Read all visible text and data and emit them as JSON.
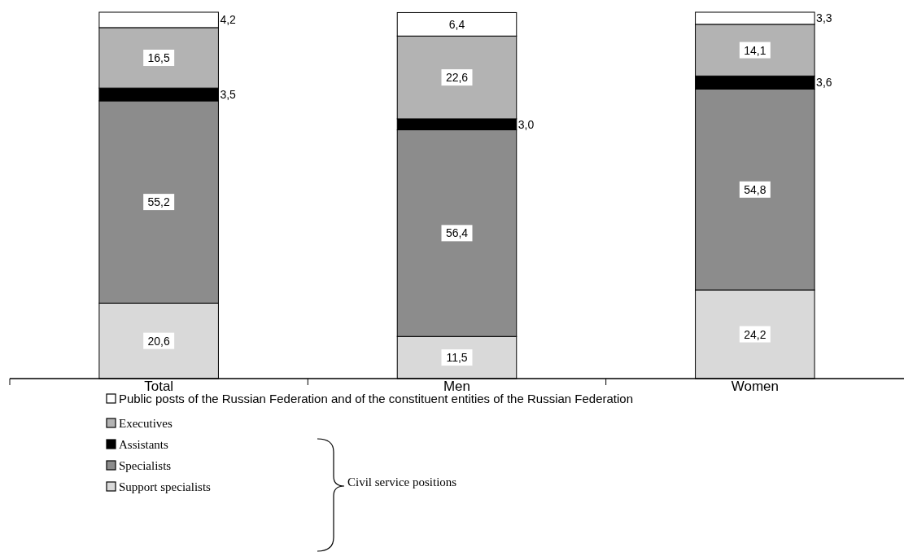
{
  "chart_data": {
    "type": "bar",
    "stacked": true,
    "categories": [
      "Total",
      "Men",
      "Women"
    ],
    "series": [
      {
        "name": "Support specialists",
        "color": "#d9d9d9",
        "values": [
          20.6,
          11.5,
          24.2
        ],
        "value_labels": [
          "20,6",
          "11,5",
          "24,2"
        ]
      },
      {
        "name": "Specialists",
        "color": "#8c8c8c",
        "values": [
          55.2,
          56.4,
          54.8
        ],
        "value_labels": [
          "55,2",
          "56,4",
          "54,8"
        ]
      },
      {
        "name": "Assistants",
        "color": "#000000",
        "values": [
          3.5,
          3.0,
          3.6
        ],
        "value_labels": [
          "3,5",
          "3,0",
          "3,6"
        ]
      },
      {
        "name": "Executives",
        "color": "#b3b3b3",
        "values": [
          16.5,
          22.6,
          14.1
        ],
        "value_labels": [
          "16,5",
          "22,6",
          "14,1"
        ]
      },
      {
        "name": "Public posts of the Russian Federation and of the constituent entities of the Russian Federation",
        "color": "#ffffff",
        "values": [
          4.2,
          6.4,
          3.3
        ],
        "value_labels": [
          "4,2",
          "6,4",
          "3,3"
        ]
      }
    ],
    "legend": "bottom",
    "annotations": [
      "Civil service positions"
    ]
  }
}
